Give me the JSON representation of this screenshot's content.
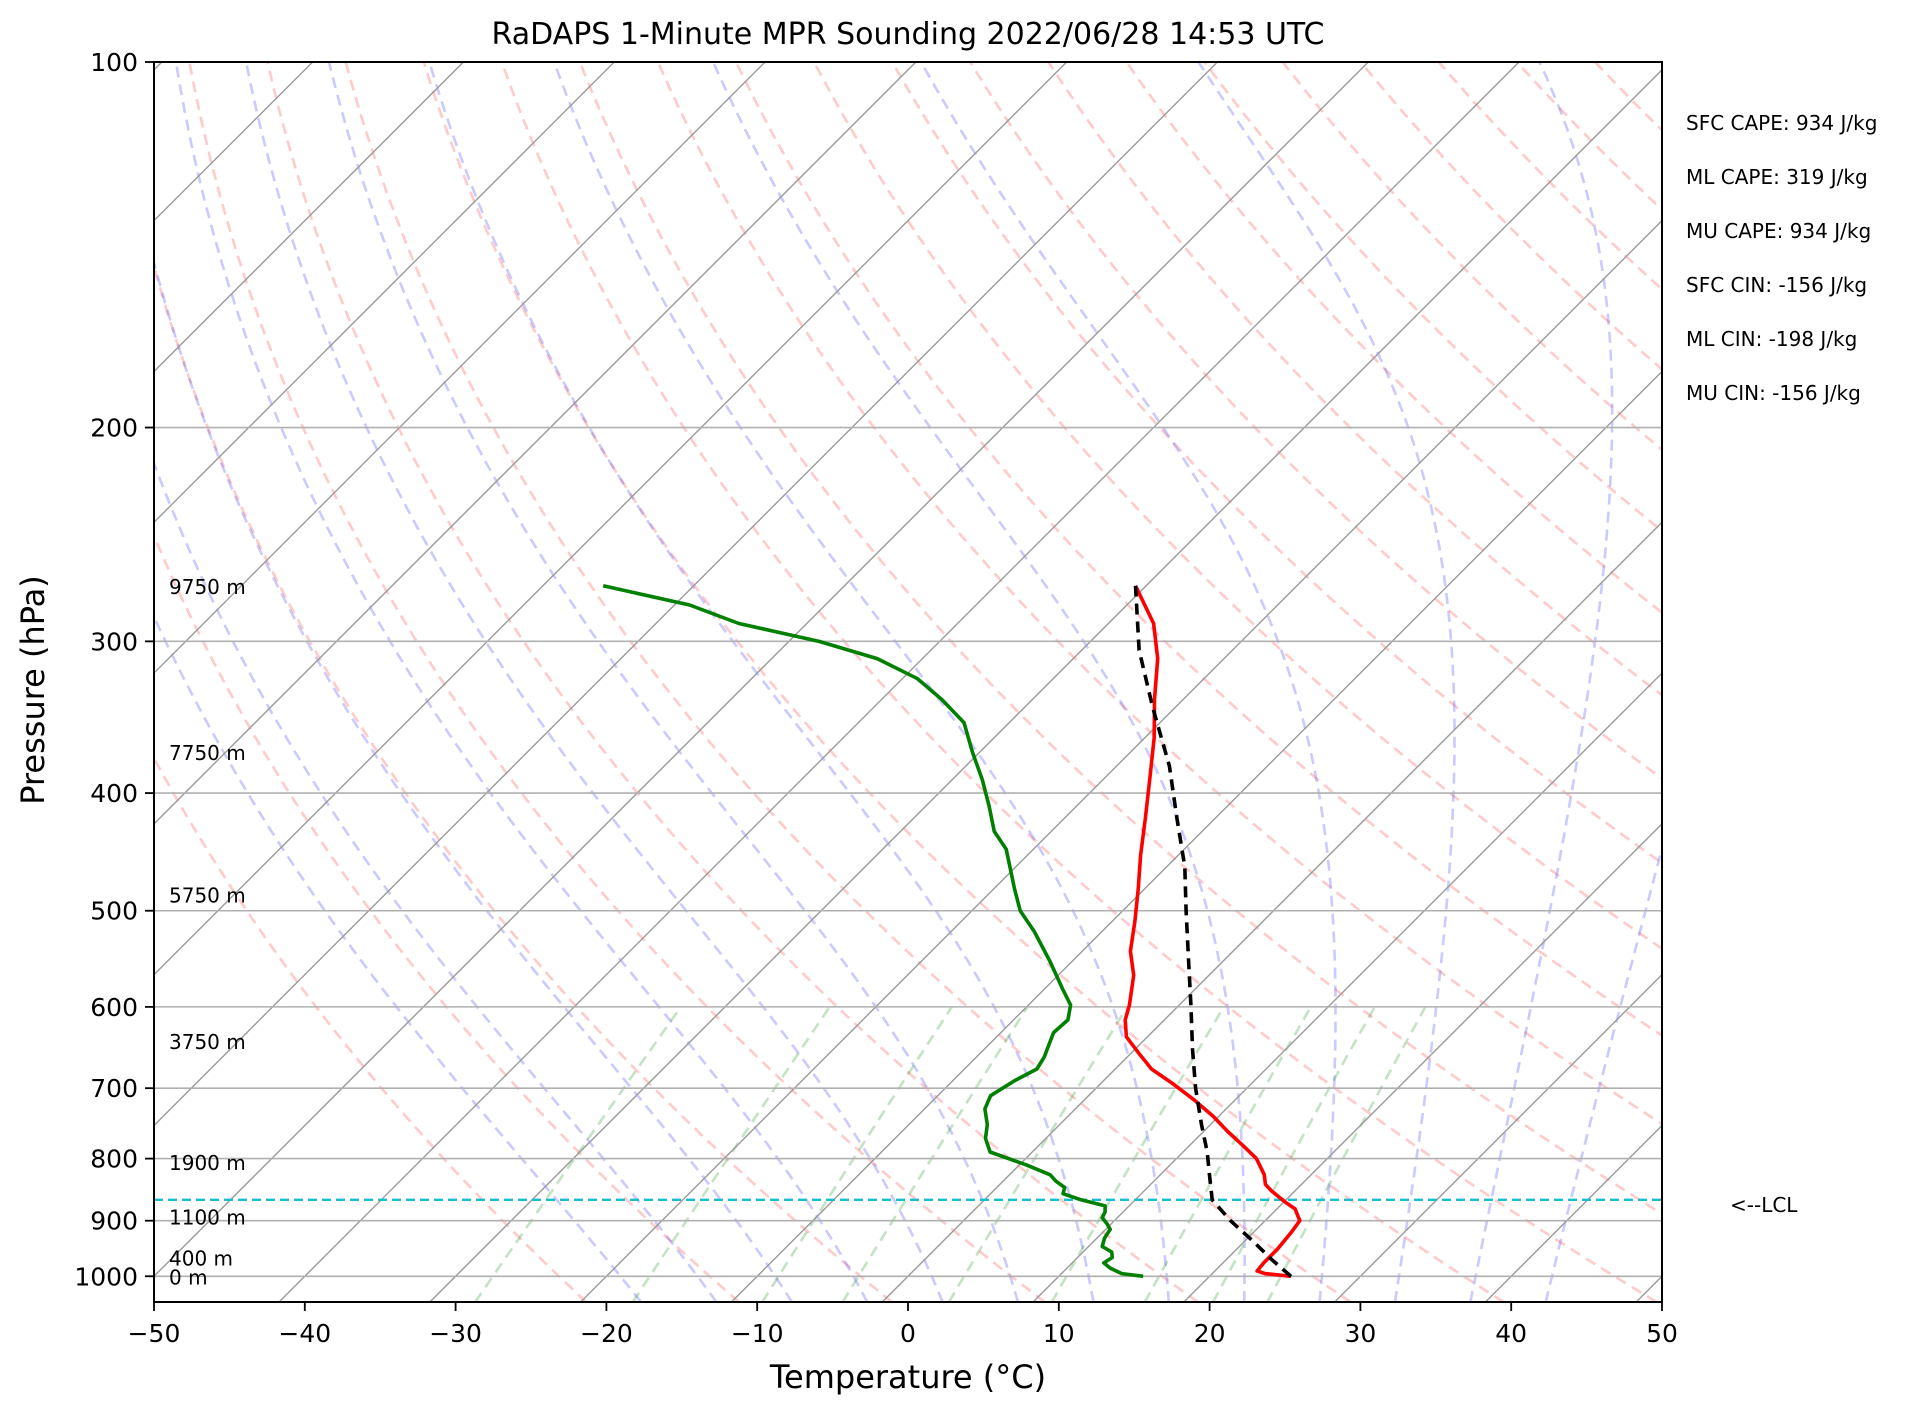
{
  "chart_data": {
    "type": "line",
    "title": "RaDAPS 1-Minute MPR Sounding 2022/06/28 14:53 UTC",
    "xlabel": "Temperature (°C)",
    "ylabel": "Pressure (hPa)",
    "xlim": [
      -50,
      50
    ],
    "ylim": [
      1050,
      100
    ],
    "y_scale": "log",
    "skew": "skew-T",
    "grid": true,
    "x_ticks": [
      -50,
      -40,
      -30,
      -20,
      -10,
      0,
      10,
      20,
      30,
      40,
      50
    ],
    "x_tick_labels": [
      "−50",
      "−40",
      "−30",
      "−20",
      "−10",
      "0",
      "10",
      "20",
      "30",
      "40",
      "50"
    ],
    "y_ticks": [
      100,
      200,
      300,
      400,
      500,
      600,
      700,
      800,
      900,
      1000
    ],
    "y_tick_labels": [
      "100",
      "200",
      "300",
      "400",
      "500",
      "600",
      "700",
      "800",
      "900",
      "1000"
    ],
    "height_labels": [
      {
        "text": "9750 m",
        "p": 270
      },
      {
        "text": "7750 m",
        "p": 370
      },
      {
        "text": "5750 m",
        "p": 485
      },
      {
        "text": "3750 m",
        "p": 640
      },
      {
        "text": "1900 m",
        "p": 805
      },
      {
        "text": "1100 m",
        "p": 893
      },
      {
        "text": "400 m",
        "p": 965
      },
      {
        "text": "0 m",
        "p": 1000
      }
    ],
    "lcl": {
      "p": 865,
      "label": "<--LCL",
      "color": "#17becf"
    },
    "stats": [
      "SFC CAPE: 934 J/kg",
      "ML CAPE: 319 J/kg",
      "MU CAPE: 934 J/kg",
      "SFC CIN: -156 J/kg",
      "ML CIN: -198 J/kg",
      "MU CIN: -156 J/kg"
    ],
    "series": [
      {
        "key": "temperature",
        "color": "#ff0000",
        "style": "solid",
        "points": [
          [
            25.4,
            1000
          ],
          [
            23.5,
            995
          ],
          [
            22.8,
            990
          ],
          [
            22.7,
            975
          ],
          [
            22.7,
            950
          ],
          [
            22.5,
            920
          ],
          [
            22.3,
            900
          ],
          [
            21.2,
            880
          ],
          [
            20.2,
            870
          ],
          [
            19.3,
            860
          ],
          [
            18.4,
            850
          ],
          [
            17.6,
            840
          ],
          [
            16.9,
            825
          ],
          [
            15.3,
            800
          ],
          [
            13.5,
            780
          ],
          [
            11.6,
            760
          ],
          [
            9.6,
            738
          ],
          [
            7.2,
            715
          ],
          [
            4.9,
            695
          ],
          [
            2.4,
            675
          ],
          [
            0.5,
            655
          ],
          [
            -1.4,
            635
          ],
          [
            -2.6,
            615
          ],
          [
            -3.3,
            598
          ],
          [
            -5.0,
            565
          ],
          [
            -6.8,
            540
          ],
          [
            -8.5,
            510
          ],
          [
            -10.4,
            480
          ],
          [
            -12.5,
            450
          ],
          [
            -14.6,
            420
          ],
          [
            -16.9,
            390
          ],
          [
            -19.4,
            360
          ],
          [
            -21.9,
            335
          ],
          [
            -24.4,
            310
          ],
          [
            -27.0,
            290
          ],
          [
            -30.7,
            270
          ]
        ]
      },
      {
        "key": "dewpoint",
        "color": "#008000",
        "style": "solid",
        "points": [
          [
            15.6,
            1000
          ],
          [
            14.0,
            995
          ],
          [
            12.9,
            985
          ],
          [
            12.1,
            975
          ],
          [
            12.3,
            965
          ],
          [
            11.9,
            955
          ],
          [
            10.9,
            945
          ],
          [
            10.5,
            930
          ],
          [
            10.3,
            915
          ],
          [
            9.7,
            905
          ],
          [
            9.0,
            895
          ],
          [
            8.8,
            885
          ],
          [
            8.4,
            875
          ],
          [
            6.4,
            865
          ],
          [
            4.8,
            855
          ],
          [
            4.5,
            845
          ],
          [
            3.5,
            835
          ],
          [
            2.7,
            825
          ],
          [
            0.5,
            810
          ],
          [
            -2.8,
            790
          ],
          [
            -4.0,
            770
          ],
          [
            -4.8,
            750
          ],
          [
            -6.0,
            728
          ],
          [
            -6.5,
            710
          ],
          [
            -5.9,
            690
          ],
          [
            -5.2,
            675
          ],
          [
            -5.5,
            660
          ],
          [
            -6.0,
            645
          ],
          [
            -6.5,
            630
          ],
          [
            -6.4,
            615
          ],
          [
            -7.2,
            598
          ],
          [
            -8.8,
            580
          ],
          [
            -11.5,
            550
          ],
          [
            -14.5,
            520
          ],
          [
            -16.8,
            500
          ],
          [
            -18.6,
            480
          ],
          [
            -20.4,
            460
          ],
          [
            -21.8,
            445
          ],
          [
            -23.8,
            430
          ],
          [
            -25.8,
            410
          ],
          [
            -28.0,
            390
          ],
          [
            -30.5,
            370
          ],
          [
            -33.0,
            350
          ],
          [
            -36.0,
            335
          ],
          [
            -39.0,
            322
          ],
          [
            -43.0,
            310
          ],
          [
            -48.0,
            300
          ],
          [
            -54.5,
            290
          ],
          [
            -59.0,
            280
          ],
          [
            -66.0,
            270
          ]
        ]
      },
      {
        "key": "parcel",
        "color": "#000000",
        "style": "dashed",
        "points": [
          [
            25.4,
            1000
          ],
          [
            23.1,
            970
          ],
          [
            20.5,
            935
          ],
          [
            17.7,
            900
          ],
          [
            15.1,
            865
          ],
          [
            13.5,
            830
          ],
          [
            11.6,
            790
          ],
          [
            9.4,
            750
          ],
          [
            6.6,
            700
          ],
          [
            3.8,
            650
          ],
          [
            0.9,
            600
          ],
          [
            -2.3,
            550
          ],
          [
            -5.8,
            500
          ],
          [
            -8.8,
            460
          ],
          [
            -12.5,
            420
          ],
          [
            -16.5,
            380
          ],
          [
            -21.5,
            340
          ],
          [
            -26.2,
            305
          ],
          [
            -30.7,
            270
          ]
        ]
      }
    ]
  }
}
